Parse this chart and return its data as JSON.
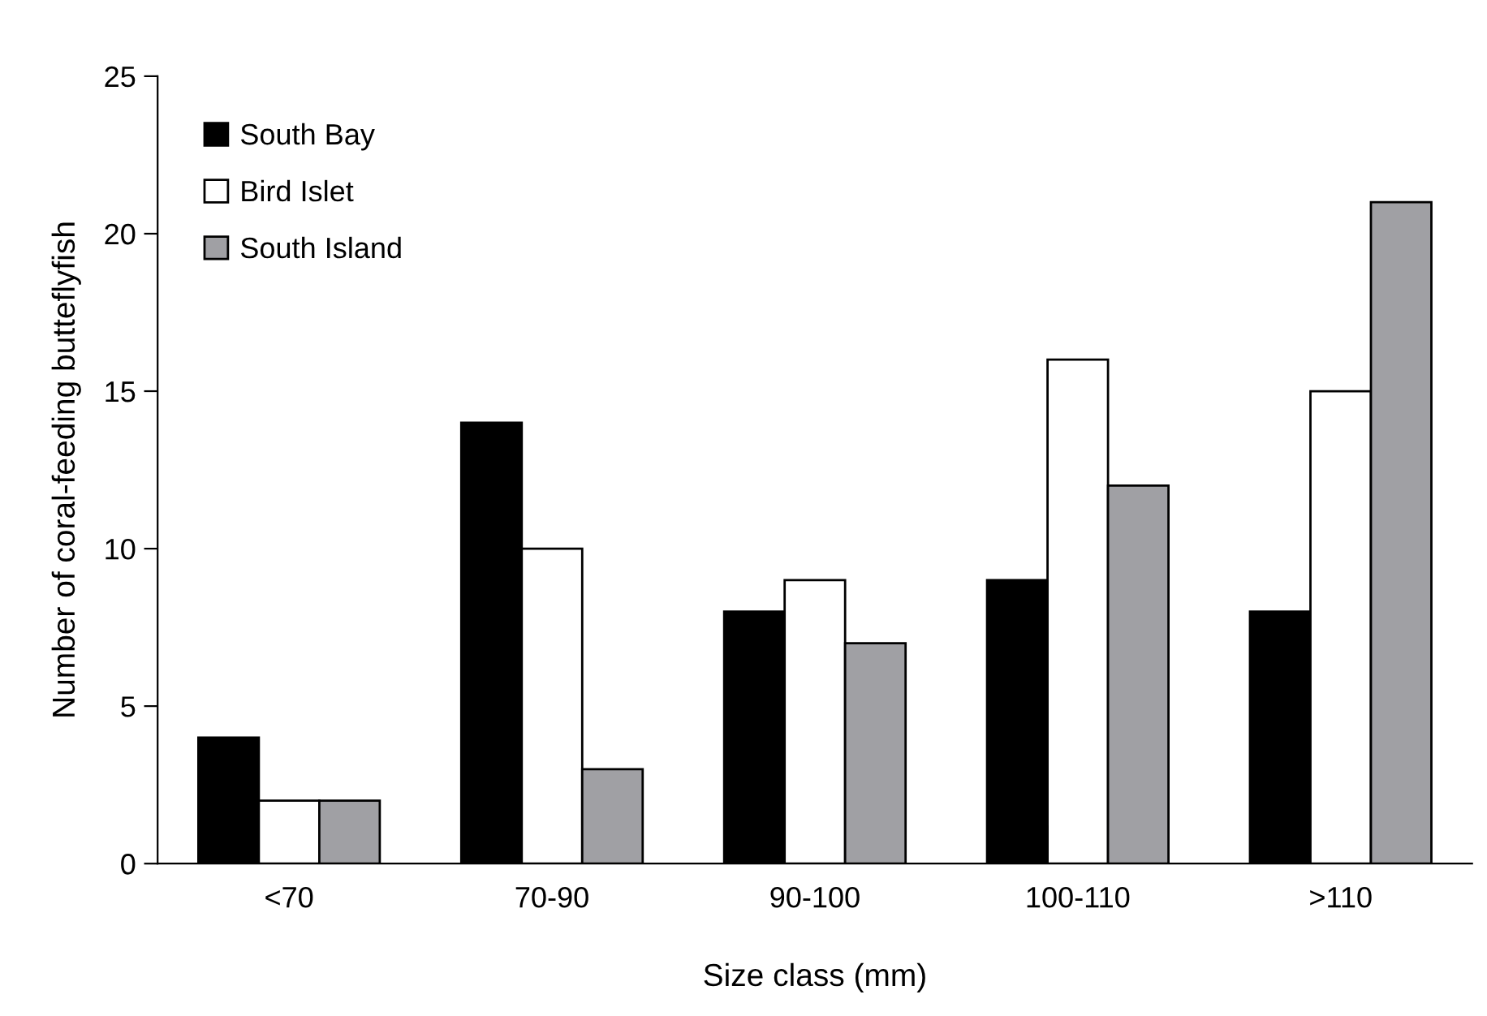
{
  "chart_data": {
    "type": "bar",
    "xlabel": "Size class (mm)",
    "ylabel": "Number of coral-feeding butteflyfish",
    "categories": [
      "<70",
      "70-90",
      "90-100",
      "100-110",
      ">110"
    ],
    "series": [
      {
        "name": "South Bay",
        "color": "#000000",
        "values": [
          4,
          14,
          8,
          9,
          8
        ]
      },
      {
        "name": "Bird Islet",
        "color": "#ffffff",
        "values": [
          2,
          10,
          9,
          16,
          15
        ]
      },
      {
        "name": "South Island",
        "color": "#a0a0a4",
        "values": [
          2,
          3,
          7,
          12,
          21
        ]
      }
    ],
    "ylim": [
      0,
      25
    ],
    "yticks": [
      0,
      5,
      10,
      15,
      20,
      25
    ],
    "grid": false,
    "legend": "top left"
  }
}
